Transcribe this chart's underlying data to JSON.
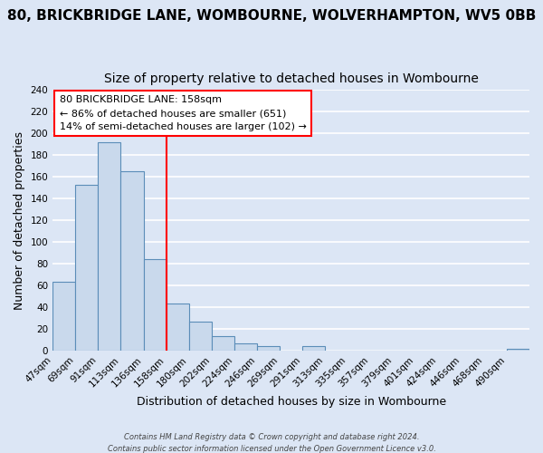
{
  "title": "80, BRICKBRIDGE LANE, WOMBOURNE, WOLVERHAMPTON, WV5 0BB",
  "subtitle": "Size of property relative to detached houses in Wombourne",
  "xlabel": "Distribution of detached houses by size in Wombourne",
  "ylabel": "Number of detached properties",
  "footer_line1": "Contains HM Land Registry data © Crown copyright and database right 2024.",
  "footer_line2": "Contains public sector information licensed under the Open Government Licence v3.0.",
  "bin_labels": [
    "47sqm",
    "69sqm",
    "91sqm",
    "113sqm",
    "136sqm",
    "158sqm",
    "180sqm",
    "202sqm",
    "224sqm",
    "246sqm",
    "269sqm",
    "291sqm",
    "313sqm",
    "335sqm",
    "357sqm",
    "379sqm",
    "401sqm",
    "424sqm",
    "446sqm",
    "468sqm",
    "490sqm"
  ],
  "bar_heights": [
    63,
    153,
    192,
    165,
    84,
    43,
    27,
    13,
    7,
    4,
    0,
    4,
    0,
    0,
    0,
    0,
    0,
    0,
    0,
    0,
    2
  ],
  "bar_color": "#c9d9ec",
  "bar_edge_color": "#5b8db8",
  "reference_line_x": 5,
  "reference_line_color": "red",
  "annotation_title": "80 BRICKBRIDGE LANE: 158sqm",
  "annotation_line1": "← 86% of detached houses are smaller (651)",
  "annotation_line2": "14% of semi-detached houses are larger (102) →",
  "annotation_box_color": "white",
  "annotation_box_edge_color": "red",
  "ylim": [
    0,
    240
  ],
  "yticks": [
    0,
    20,
    40,
    60,
    80,
    100,
    120,
    140,
    160,
    180,
    200,
    220,
    240
  ],
  "background_color": "#dce6f5",
  "plot_background_color": "#dce6f5",
  "grid_color": "white",
  "title_fontsize": 11,
  "subtitle_fontsize": 10,
  "axis_label_fontsize": 9,
  "tick_fontsize": 7.5
}
